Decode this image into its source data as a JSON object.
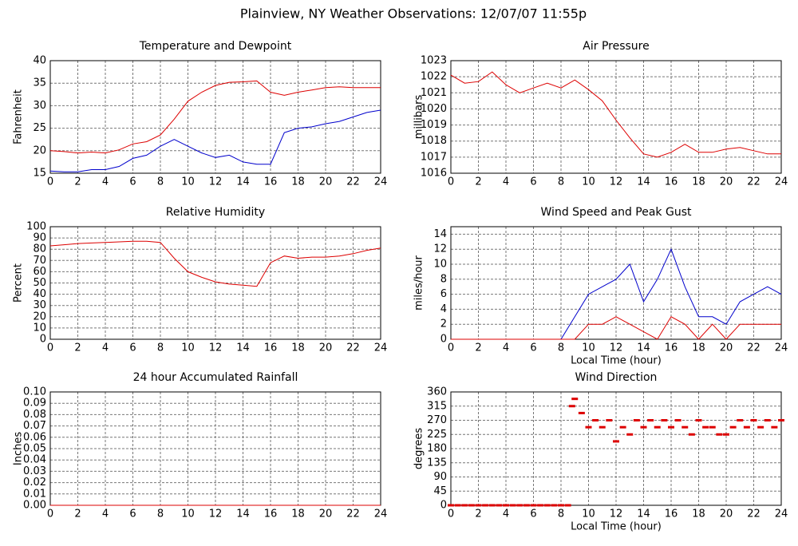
{
  "title": "Plainview, NY Weather Observations: 12/07/07 11:55p",
  "chart_data": [
    {
      "type": "line",
      "title": "Temperature and Dewpoint",
      "ylabel": "Fahrenheit",
      "x": [
        0,
        1,
        2,
        3,
        4,
        5,
        6,
        7,
        8,
        9,
        10,
        11,
        12,
        13,
        14,
        15,
        16,
        17,
        18,
        19,
        20,
        21,
        22,
        23,
        24
      ],
      "series": [
        {
          "color": "#dd0000",
          "values": [
            20,
            19.8,
            19.5,
            19.7,
            19.5,
            20.2,
            21.5,
            22,
            23.5,
            27,
            31,
            33,
            34.5,
            35.2,
            35.3,
            35.5,
            33,
            32.3,
            33,
            33.5,
            34,
            34.2,
            34,
            34,
            34
          ]
        },
        {
          "color": "#0000cc",
          "values": [
            15.5,
            15.3,
            15.3,
            15.8,
            15.8,
            16.5,
            18.3,
            19,
            21,
            22.5,
            21,
            19.5,
            18.5,
            19,
            17.5,
            17,
            17,
            24,
            25,
            25.3,
            26,
            26.5,
            27.5,
            28.5,
            29
          ]
        }
      ],
      "xlim": [
        0,
        24
      ],
      "ylim": [
        15,
        40
      ],
      "xticks": [
        0,
        2,
        4,
        6,
        8,
        10,
        12,
        14,
        16,
        18,
        20,
        22,
        24
      ],
      "yticks": [
        15,
        20,
        25,
        30,
        35,
        40
      ],
      "grid": true
    },
    {
      "type": "line",
      "title": "Air Pressure",
      "ylabel": "millibars",
      "x": [
        0,
        1,
        2,
        3,
        4,
        5,
        6,
        7,
        8,
        9,
        10,
        11,
        12,
        13,
        14,
        15,
        16,
        17,
        18,
        19,
        20,
        21,
        22,
        23,
        24
      ],
      "series": [
        {
          "color": "#dd0000",
          "values": [
            1022.1,
            1021.6,
            1021.7,
            1022.3,
            1021.5,
            1021,
            1021.3,
            1021.6,
            1021.3,
            1021.8,
            1021.2,
            1020.5,
            1019.3,
            1018.2,
            1017.2,
            1017,
            1017.3,
            1017.8,
            1017.3,
            1017.3,
            1017.5,
            1017.6,
            1017.4,
            1017.2,
            1017.2
          ]
        }
      ],
      "xlim": [
        0,
        24
      ],
      "ylim": [
        1016,
        1023
      ],
      "xticks": [
        0,
        2,
        4,
        6,
        8,
        10,
        12,
        14,
        16,
        18,
        20,
        22,
        24
      ],
      "yticks": [
        1016,
        1017,
        1018,
        1019,
        1020,
        1021,
        1022,
        1023
      ],
      "grid": true
    },
    {
      "type": "line",
      "title": "Relative Humidity",
      "ylabel": "Percent",
      "x": [
        0,
        1,
        2,
        3,
        4,
        5,
        6,
        7,
        8,
        9,
        10,
        11,
        12,
        13,
        14,
        15,
        16,
        17,
        18,
        19,
        20,
        21,
        22,
        23,
        24
      ],
      "series": [
        {
          "color": "#dd0000",
          "values": [
            83,
            84,
            85,
            85.5,
            86,
            86.5,
            87,
            87,
            86,
            72,
            60,
            55,
            51,
            49,
            48,
            47,
            68,
            74,
            72,
            73,
            73,
            74,
            76,
            79,
            81
          ]
        }
      ],
      "xlim": [
        0,
        24
      ],
      "ylim": [
        0,
        100
      ],
      "xticks": [
        0,
        2,
        4,
        6,
        8,
        10,
        12,
        14,
        16,
        18,
        20,
        22,
        24
      ],
      "yticks": [
        0,
        10,
        20,
        30,
        40,
        50,
        60,
        70,
        80,
        90,
        100
      ],
      "grid": true
    },
    {
      "type": "line",
      "title": "Wind Speed and Peak Gust",
      "ylabel": "miles/hour",
      "xlabel": "Local Time (hour)",
      "x": [
        0,
        1,
        2,
        3,
        4,
        5,
        6,
        7,
        8,
        9,
        10,
        11,
        12,
        13,
        14,
        15,
        16,
        17,
        18,
        19,
        20,
        21,
        22,
        23,
        24
      ],
      "series": [
        {
          "color": "#0000cc",
          "values": [
            0,
            0,
            0,
            0,
            0,
            0,
            0,
            0,
            0,
            3,
            6,
            7,
            8,
            10,
            5,
            8,
            12,
            7,
            3,
            3,
            2,
            5,
            6,
            7,
            6
          ]
        },
        {
          "color": "#dd0000",
          "values": [
            0,
            0,
            0,
            0,
            0,
            0,
            0,
            0,
            0,
            0,
            2,
            2,
            3,
            2,
            1,
            0,
            3,
            2,
            0,
            2,
            0,
            2,
            2,
            2,
            2
          ]
        }
      ],
      "xlim": [
        0,
        24
      ],
      "ylim": [
        0,
        15
      ],
      "xticks": [
        0,
        2,
        4,
        6,
        8,
        10,
        12,
        14,
        16,
        18,
        20,
        22,
        24
      ],
      "yticks": [
        0,
        2,
        4,
        6,
        8,
        10,
        12,
        14
      ],
      "grid": true
    },
    {
      "type": "line",
      "title": "24 hour Accumulated Rainfall",
      "ylabel": "Inches",
      "x": [
        0,
        24
      ],
      "series": [
        {
          "color": "#dd0000",
          "values": [
            0,
            0
          ]
        }
      ],
      "xlim": [
        0,
        24
      ],
      "ylim": [
        0,
        0.1
      ],
      "xticks": [
        0,
        2,
        4,
        6,
        8,
        10,
        12,
        14,
        16,
        18,
        20,
        22,
        24
      ],
      "yticks": [
        {
          "value": 0,
          "label": "0.00"
        },
        {
          "value": 0.01,
          "label": "0.01"
        },
        {
          "value": 0.02,
          "label": "0.02"
        },
        {
          "value": 0.03,
          "label": "0.03"
        },
        {
          "value": 0.04,
          "label": "0.04"
        },
        {
          "value": 0.05,
          "label": "0.05"
        },
        {
          "value": 0.06,
          "label": "0.06"
        },
        {
          "value": 0.07,
          "label": "0.07"
        },
        {
          "value": 0.08,
          "label": "0.08"
        },
        {
          "value": 0.09,
          "label": "0.09"
        },
        {
          "value": 0.1,
          "label": "0.10"
        }
      ],
      "grid": true
    },
    {
      "type": "scatter",
      "title": "Wind Direction",
      "ylabel": "degrees",
      "xlabel": "Local Time (hour)",
      "x": [
        0,
        0.5,
        1,
        1.5,
        2,
        2.5,
        3,
        3.5,
        4,
        4.5,
        5,
        5.5,
        6,
        6.5,
        7,
        7.5,
        8,
        8.5,
        8.8,
        9,
        9.5,
        10,
        10.5,
        11,
        11.5,
        12,
        12.5,
        13,
        13.5,
        14,
        14.5,
        15,
        15.5,
        16,
        16.5,
        17,
        17.5,
        18,
        18.5,
        19,
        19.5,
        20,
        20.5,
        21,
        21.5,
        22,
        22.5,
        23,
        23.5,
        24
      ],
      "series": [
        {
          "color": "#dd0000",
          "values": [
            0,
            0,
            0,
            0,
            0,
            0,
            0,
            0,
            0,
            0,
            0,
            0,
            0,
            0,
            0,
            0,
            0,
            0,
            315,
            338,
            293,
            248,
            270,
            248,
            270,
            203,
            248,
            225,
            270,
            248,
            270,
            248,
            270,
            248,
            270,
            248,
            225,
            270,
            248,
            248,
            225,
            225,
            248,
            270,
            248,
            270,
            248,
            270,
            248,
            270
          ]
        }
      ],
      "xlim": [
        0,
        24
      ],
      "ylim": [
        0,
        360
      ],
      "xticks": [
        0,
        2,
        4,
        6,
        8,
        10,
        12,
        14,
        16,
        18,
        20,
        22,
        24
      ],
      "yticks": [
        0,
        45,
        90,
        135,
        180,
        225,
        270,
        315,
        360
      ],
      "grid": true
    }
  ]
}
